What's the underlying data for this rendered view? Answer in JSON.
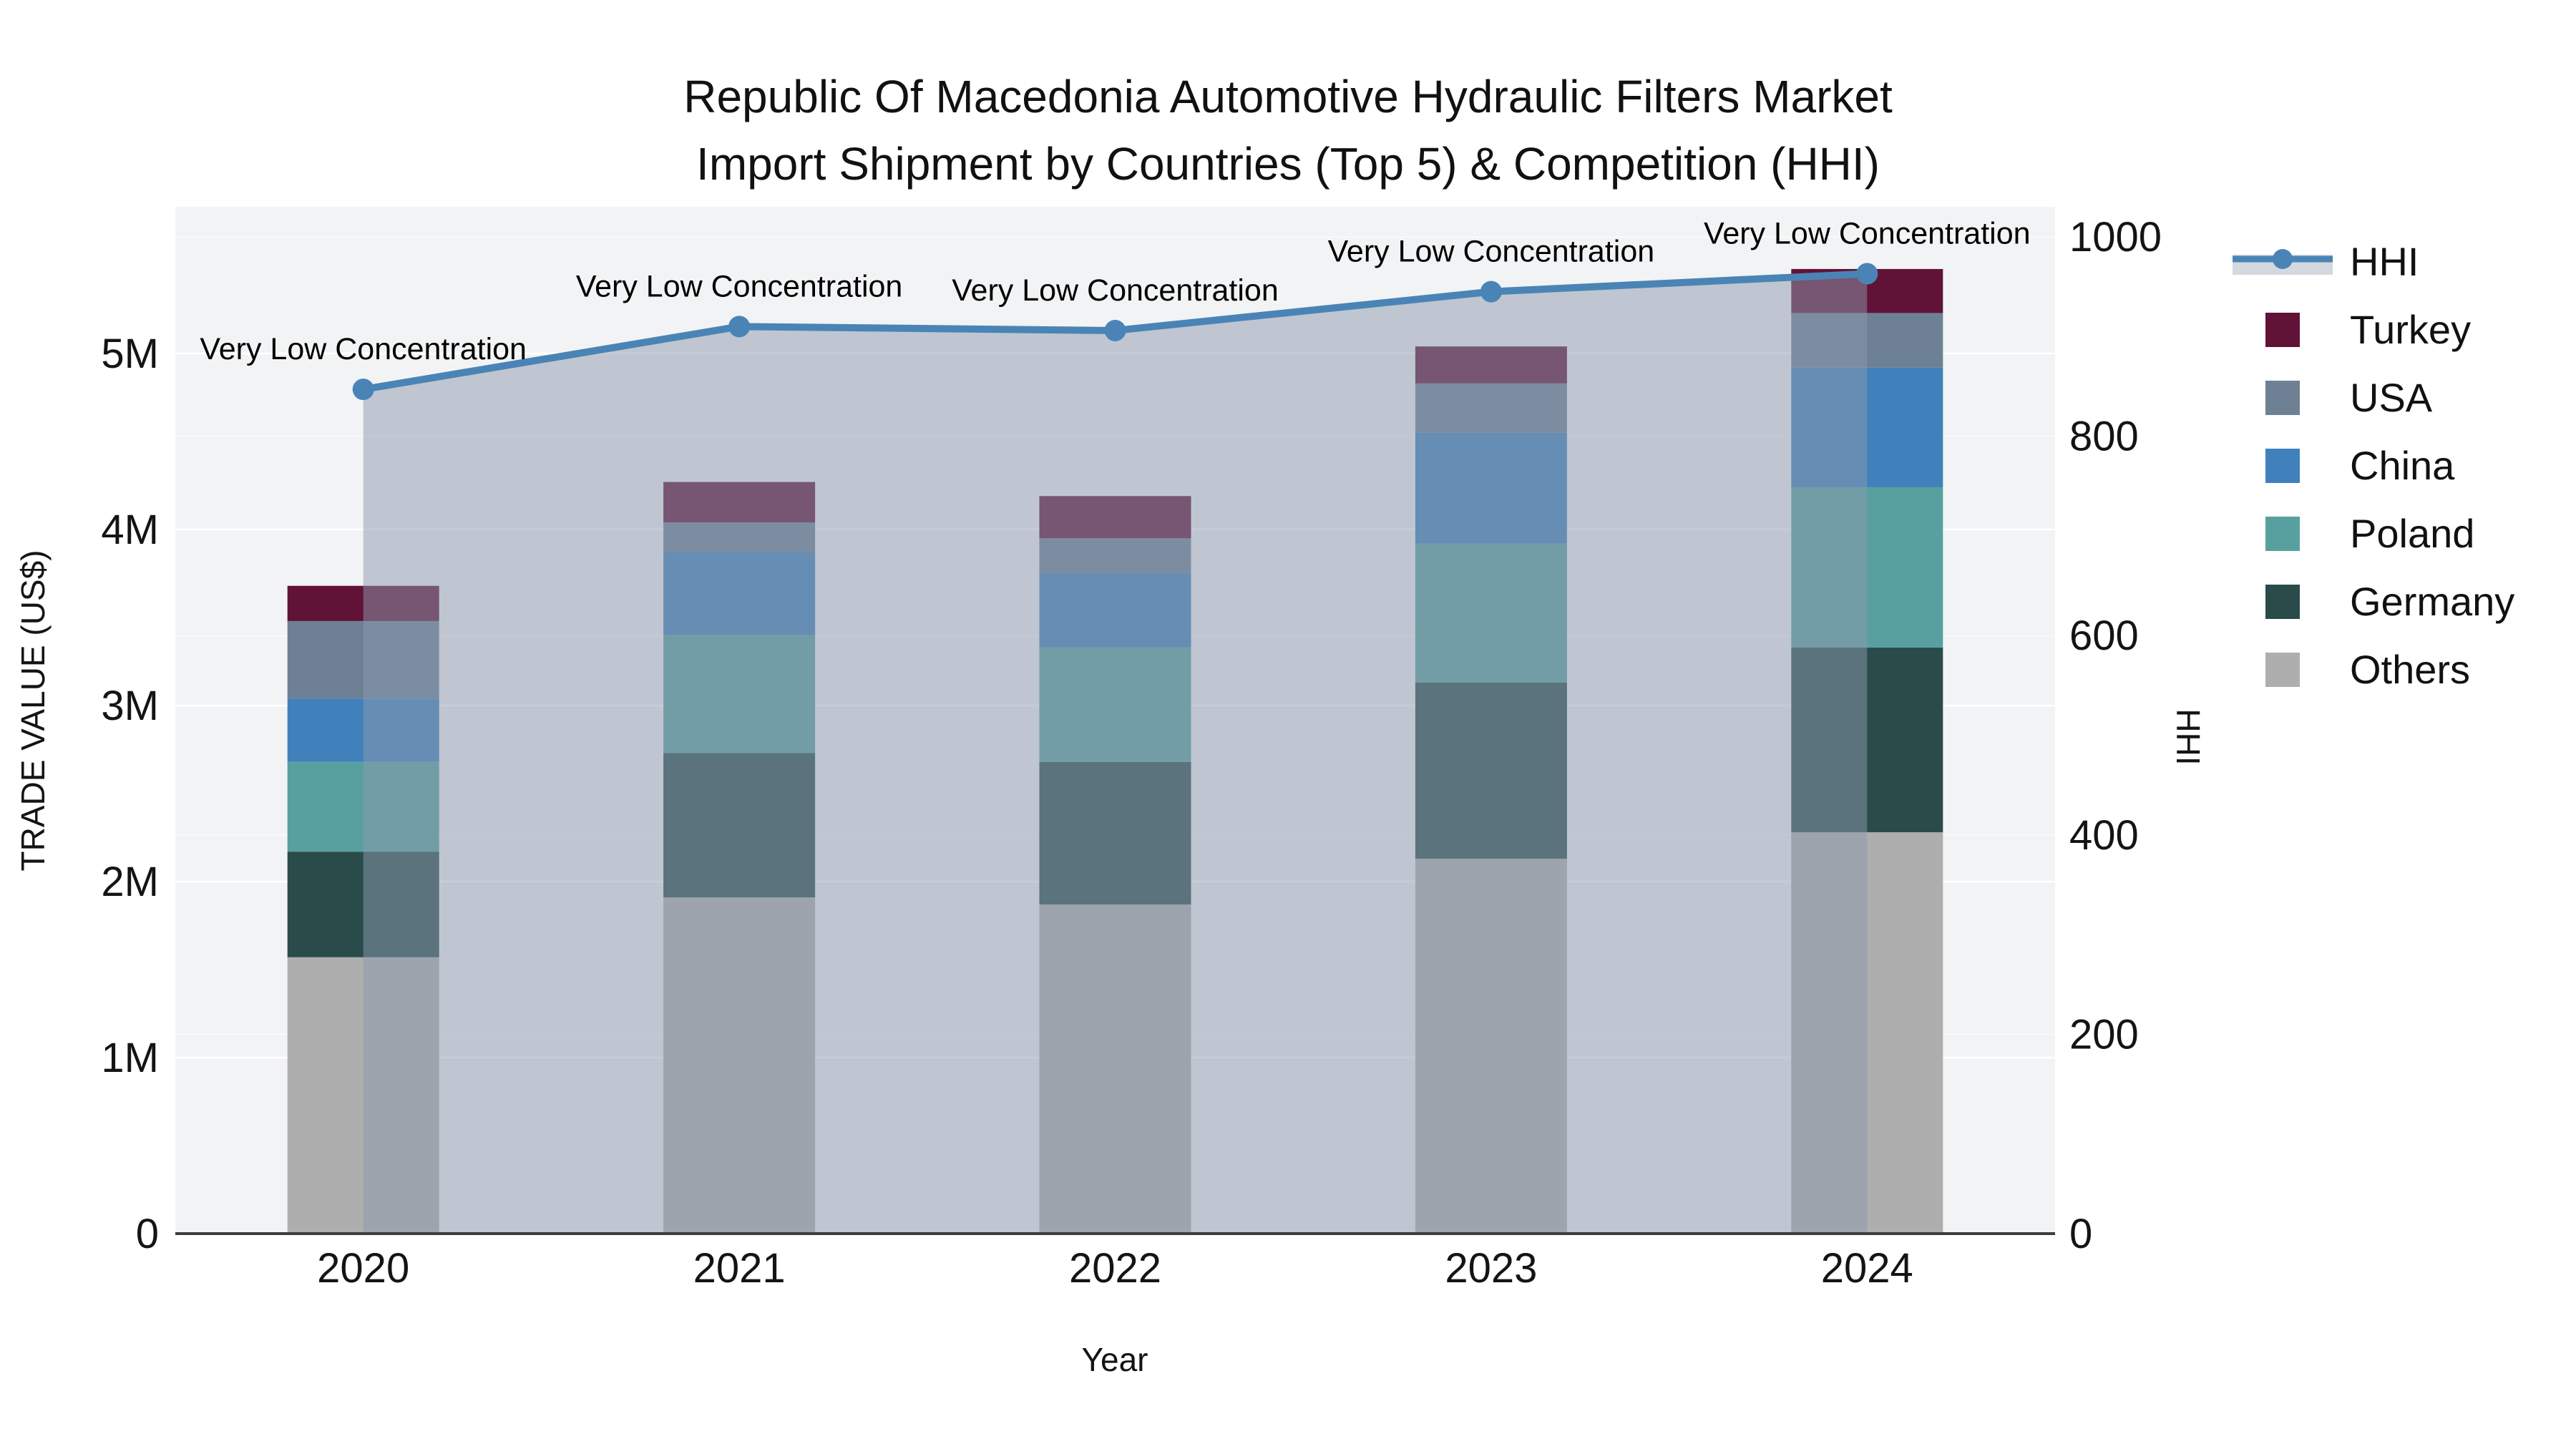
{
  "title": {
    "line1": "Republic Of Macedonia Automotive Hydraulic Filters Market",
    "line2": "Import Shipment by Countries (Top 5) & Competition (HHI)"
  },
  "axes": {
    "left": {
      "title": "TRADE VALUE (US$)",
      "ticks": [
        "0",
        "1M",
        "2M",
        "3M",
        "4M",
        "5M"
      ],
      "tick_values": [
        0,
        1,
        2,
        3,
        4,
        5
      ]
    },
    "right": {
      "title": "HHI",
      "ticks": [
        "0",
        "200",
        "400",
        "600",
        "800",
        "1000"
      ],
      "tick_values": [
        0,
        200,
        400,
        600,
        800,
        1000
      ]
    },
    "x": {
      "title": "Year"
    }
  },
  "chart_data": {
    "type": "bar",
    "stacked": true,
    "categories": [
      "2020",
      "2021",
      "2022",
      "2023",
      "2024"
    ],
    "value_unit": "million US$",
    "ylim_left_millions": [
      0,
      5.83
    ],
    "ylim_right_hhi": [
      0,
      1000
    ],
    "series": [
      {
        "name": "Turkey",
        "color": "#611237",
        "values": [
          0.2,
          0.23,
          0.24,
          0.21,
          0.25
        ]
      },
      {
        "name": "USA",
        "color": "#6e8094",
        "values": [
          0.44,
          0.17,
          0.2,
          0.28,
          0.31
        ]
      },
      {
        "name": "China",
        "color": "#4081bb",
        "values": [
          0.36,
          0.47,
          0.42,
          0.63,
          0.68
        ]
      },
      {
        "name": "Poland",
        "color": "#58a0a0",
        "values": [
          0.51,
          0.67,
          0.65,
          0.79,
          0.91
        ]
      },
      {
        "name": "Germany",
        "color": "#294c4a",
        "values": [
          0.6,
          0.82,
          0.81,
          1.0,
          1.05
        ]
      },
      {
        "name": "Others",
        "color": "#aeaeae",
        "values": [
          1.57,
          1.91,
          1.87,
          2.13,
          2.28
        ]
      }
    ],
    "totals_millions": [
      3.68,
      4.27,
      4.19,
      5.04,
      5.48
    ],
    "line": {
      "name": "HHI",
      "axis": "right",
      "color": "#4a84b6",
      "area_fill": "rgba(140,153,173,0.5)",
      "values": [
        847,
        910,
        906,
        945,
        963
      ],
      "annotations": [
        "Very Low Concentration",
        "Very Low Concentration",
        "Very Low Concentration",
        "Very Low Concentration",
        "Very Low Concentration"
      ]
    }
  },
  "legend": {
    "items": [
      {
        "label": "HHI",
        "type": "line",
        "color": "#4a84b6",
        "band_color": "#d4d8df"
      },
      {
        "label": "Turkey",
        "type": "swatch",
        "color": "#611237"
      },
      {
        "label": "USA",
        "type": "swatch",
        "color": "#6e8094"
      },
      {
        "label": "China",
        "type": "swatch",
        "color": "#4081bb"
      },
      {
        "label": "Poland",
        "type": "swatch",
        "color": "#58a0a0"
      },
      {
        "label": "Germany",
        "type": "swatch",
        "color": "#294c4a"
      },
      {
        "label": "Others",
        "type": "swatch",
        "color": "#aeaeae"
      }
    ]
  },
  "colors": {
    "page_bg": "#ffffff",
    "plot_bg": "#f2f3f4",
    "axis_line": "#3d3d3d",
    "text": "#141414",
    "grid_major": "rgba(255,255,255,0.9)",
    "grid_minor": "rgba(255,255,255,0.5)"
  }
}
